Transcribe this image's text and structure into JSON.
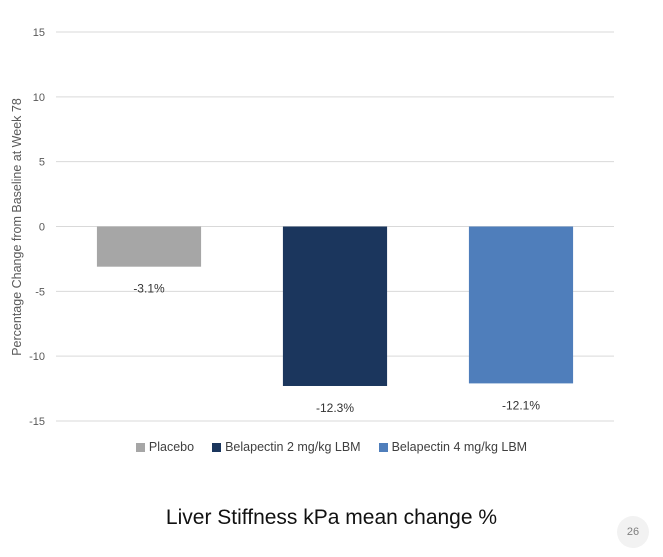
{
  "chart_data": {
    "type": "bar",
    "categories": [
      "Placebo",
      "Belapectin 2 mg/kg LBM",
      "Belapectin 4 mg/kg LBM"
    ],
    "values": [
      -3.1,
      -12.3,
      -12.1
    ],
    "data_labels": [
      "-3.1%",
      "-12.3%",
      "-12.1%"
    ],
    "colors": [
      "#a6a6a6",
      "#1b365d",
      "#4f7ebb"
    ],
    "ylabel": "Percentage Change from Baseline at Week 78",
    "xlabel": "",
    "ylim": [
      -15,
      15
    ],
    "yticks": [
      15,
      10,
      5,
      0,
      -5,
      -10,
      -15
    ],
    "grid": true,
    "gridline_color": "#d9d9d9",
    "legend_position": "bottom"
  },
  "legend": {
    "items": [
      {
        "label": "Placebo",
        "color": "#a6a6a6"
      },
      {
        "label": "Belapectin 2 mg/kg LBM",
        "color": "#1b365d"
      },
      {
        "label": "Belapectin 4 mg/kg LBM",
        "color": "#4f7ebb"
      }
    ]
  },
  "caption": "Liver Stiffness kPa mean change %",
  "page_number": "26"
}
